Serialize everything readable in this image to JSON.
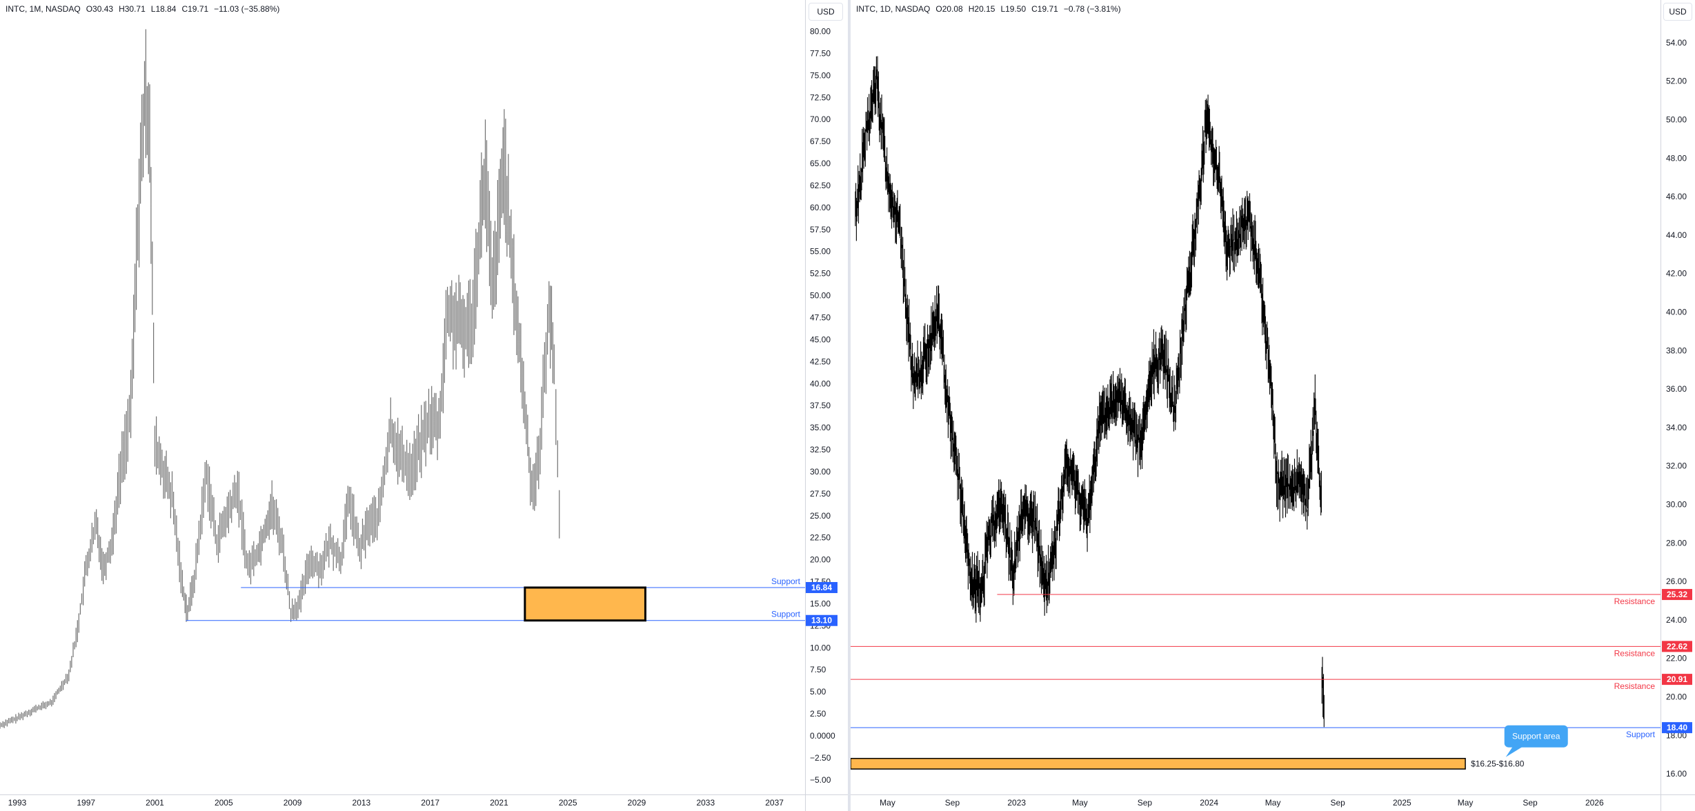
{
  "left": {
    "legend": {
      "symbol": "INTC, 1M, NASDAQ",
      "o": "O30.43",
      "h": "H30.71",
      "l": "L18.84",
      "c": "C19.71",
      "chg": "−11.03 (−35.88%)"
    },
    "currency": "USD"
  },
  "right": {
    "legend": {
      "symbol": "INTC, 1D, NASDAQ",
      "o": "O20.08",
      "h": "H20.15",
      "l": "L19.50",
      "c": "C19.71",
      "chg": "−0.78 (−3.81%)"
    },
    "currency": "USD"
  },
  "colors": {
    "support": "#2962ff",
    "resistance": "#f23645",
    "zone_fill": "#ffb74d",
    "zone_border": "#000000",
    "bars_left": "#707070",
    "bars_right": "#000000",
    "callout": "#42a5f5"
  },
  "chart_data": [
    {
      "type": "line",
      "title": "INTC, 1M, NASDAQ",
      "x_ticks": [
        "1993",
        "1997",
        "2001",
        "2005",
        "2009",
        "2013",
        "2017",
        "2021",
        "2025",
        "2029",
        "2033",
        "2037"
      ],
      "y_ticks": [
        "80.00",
        "77.50",
        "75.00",
        "72.50",
        "70.00",
        "67.50",
        "65.00",
        "62.50",
        "60.00",
        "57.50",
        "55.00",
        "52.50",
        "50.00",
        "47.50",
        "45.00",
        "42.50",
        "40.00",
        "37.50",
        "35.00",
        "32.50",
        "30.00",
        "27.50",
        "25.00",
        "22.50",
        "20.00",
        "17.50",
        "15.00",
        "12.50",
        "10.00",
        "7.50",
        "5.00",
        "2.50",
        "0.0000",
        "−2.50",
        "−5.00"
      ],
      "ylim": [
        -6.5,
        82
      ],
      "xlim": [
        1992.0,
        2038.5
      ],
      "series": [
        {
          "values": [
            [
              1992.0,
              1.2
            ],
            [
              1993.0,
              2.0
            ],
            [
              1994.0,
              3.0
            ],
            [
              1995.0,
              3.8
            ],
            [
              1996.0,
              7.0
            ],
            [
              1996.5,
              12
            ],
            [
              1997.0,
              19
            ],
            [
              1997.6,
              24
            ],
            [
              1998.0,
              19
            ],
            [
              1998.5,
              22
            ],
            [
              1999.0,
              30
            ],
            [
              1999.6,
              37
            ],
            [
              2000.0,
              58
            ],
            [
              2000.4,
              72
            ],
            [
              2000.7,
              70
            ],
            [
              2001.0,
              33
            ],
            [
              2001.5,
              30
            ],
            [
              2002.0,
              27
            ],
            [
              2002.6,
              17
            ],
            [
              2002.9,
              14
            ],
            [
              2003.3,
              18
            ],
            [
              2004.0,
              30
            ],
            [
              2004.6,
              22
            ],
            [
              2005.2,
              25
            ],
            [
              2005.8,
              28
            ],
            [
              2006.4,
              19
            ],
            [
              2007.0,
              21
            ],
            [
              2007.8,
              26
            ],
            [
              2008.4,
              22
            ],
            [
              2008.9,
              14
            ],
            [
              2009.4,
              15
            ],
            [
              2010.0,
              20
            ],
            [
              2010.6,
              19
            ],
            [
              2011.2,
              22
            ],
            [
              2011.8,
              20
            ],
            [
              2012.3,
              27
            ],
            [
              2012.9,
              21
            ],
            [
              2013.4,
              24
            ],
            [
              2014.0,
              25
            ],
            [
              2014.7,
              35
            ],
            [
              2015.2,
              32
            ],
            [
              2015.9,
              30
            ],
            [
              2016.4,
              33
            ],
            [
              2017.0,
              36
            ],
            [
              2017.5,
              35
            ],
            [
              2018.0,
              48
            ],
            [
              2018.5,
              47
            ],
            [
              2018.9,
              46
            ],
            [
              2019.4,
              47
            ],
            [
              2019.9,
              58
            ],
            [
              2020.2,
              64
            ],
            [
              2020.6,
              50
            ],
            [
              2021.0,
              58
            ],
            [
              2021.3,
              66
            ],
            [
              2021.7,
              54
            ],
            [
              2022.1,
              46
            ],
            [
              2022.5,
              37
            ],
            [
              2022.9,
              28
            ],
            [
              2023.3,
              31
            ],
            [
              2023.9,
              49
            ],
            [
              2024.2,
              42
            ],
            [
              2024.4,
              31
            ],
            [
              2024.6,
              20
            ]
          ]
        }
      ],
      "annotations": [
        {
          "type": "hline",
          "value": 16.84,
          "x_start": 2006.0,
          "label": "Support",
          "tag": "16.84",
          "color": "#2962ff"
        },
        {
          "type": "hline",
          "value": 13.1,
          "x_start": 2002.8,
          "label": "Support",
          "tag": "13.10",
          "color": "#2962ff"
        },
        {
          "type": "zone",
          "y_range": [
            13.1,
            16.84
          ],
          "x_range": [
            2022.5,
            2029.5
          ],
          "fill": "#ffb74d"
        }
      ]
    },
    {
      "type": "line",
      "title": "INTC, 1D, NASDAQ",
      "x_ticks": [
        "May",
        "Sep",
        "2023",
        "May",
        "Sep",
        "2024",
        "May",
        "Sep",
        "2025",
        "May",
        "Sep",
        "2026"
      ],
      "y_ticks": [
        "54.00",
        "52.00",
        "50.00",
        "48.00",
        "46.00",
        "44.00",
        "42.00",
        "40.00",
        "38.00",
        "36.00",
        "34.00",
        "32.00",
        "30.00",
        "28.00",
        "26.00",
        "24.00",
        "22.00",
        "20.00",
        "18.00",
        "16.00"
      ],
      "ylim": [
        15.0,
        55.5
      ],
      "series": [
        {
          "values": [
            [
              "2022-03-01",
              45
            ],
            [
              "2022-03-20",
              49
            ],
            [
              "2022-04-10",
              52
            ],
            [
              "2022-05-01",
              47
            ],
            [
              "2022-05-25",
              44
            ],
            [
              "2022-06-20",
              36
            ],
            [
              "2022-07-15",
              38
            ],
            [
              "2022-08-05",
              40
            ],
            [
              "2022-08-25",
              35
            ],
            [
              "2022-09-15",
              31
            ],
            [
              "2022-10-05",
              26
            ],
            [
              "2022-10-25",
              25.5
            ],
            [
              "2022-11-15",
              29
            ],
            [
              "2022-12-05",
              30
            ],
            [
              "2022-12-25",
              26.5
            ],
            [
              "2023-01-15",
              30
            ],
            [
              "2023-02-05",
              29
            ],
            [
              "2023-02-25",
              25.5
            ],
            [
              "2023-03-15",
              28
            ],
            [
              "2023-04-05",
              32
            ],
            [
              "2023-04-25",
              31
            ],
            [
              "2023-05-15",
              29
            ],
            [
              "2023-06-05",
              34
            ],
            [
              "2023-06-25",
              35
            ],
            [
              "2023-07-15",
              36
            ],
            [
              "2023-08-05",
              34
            ],
            [
              "2023-08-25",
              33
            ],
            [
              "2023-09-15",
              37
            ],
            [
              "2023-10-05",
              38
            ],
            [
              "2023-10-28",
              35
            ],
            [
              "2023-11-15",
              40
            ],
            [
              "2023-12-05",
              44
            ],
            [
              "2023-12-27",
              50
            ],
            [
              "2024-01-20",
              47
            ],
            [
              "2024-02-05",
              43
            ],
            [
              "2024-02-25",
              44
            ],
            [
              "2024-03-15",
              45
            ],
            [
              "2024-04-05",
              42
            ],
            [
              "2024-04-25",
              37
            ],
            [
              "2024-05-10",
              31
            ],
            [
              "2024-05-30",
              31
            ],
            [
              "2024-06-20",
              31
            ],
            [
              "2024-07-05",
              30
            ],
            [
              "2024-07-20",
              35
            ],
            [
              "2024-08-01",
              30
            ],
            [
              "2024-08-02",
              21
            ],
            [
              "2024-08-07",
              19.7
            ]
          ]
        }
      ],
      "annotations": [
        {
          "type": "hline",
          "value": 25.32,
          "label": "Resistance",
          "tag": "25.32",
          "color": "#f23645"
        },
        {
          "type": "hline",
          "value": 22.62,
          "label": "Resistance",
          "tag": "22.62",
          "color": "#f23645"
        },
        {
          "type": "hline",
          "value": 20.91,
          "label": "Resistance",
          "tag": "20.91",
          "color": "#f23645"
        },
        {
          "type": "hline",
          "value": 18.4,
          "label": "Support",
          "tag": "18.40",
          "color": "#2962ff"
        },
        {
          "type": "zone",
          "y_range": [
            16.25,
            16.8
          ],
          "label": "$16.25-$16.80",
          "fill": "#ffb74d"
        },
        {
          "type": "callout",
          "text": "Support area"
        }
      ]
    }
  ]
}
